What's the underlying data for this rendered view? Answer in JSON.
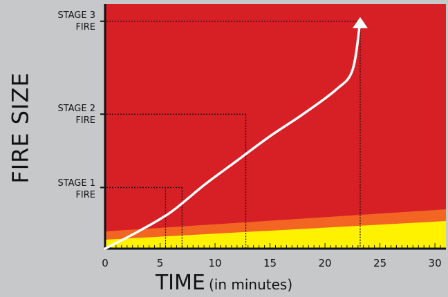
{
  "chart_data": {
    "type": "area",
    "xlabel": "TIME",
    "xlabel_suffix": "(in minutes)",
    "ylabel": "FIRE SIZE",
    "xlim": [
      0,
      31
    ],
    "xticks": [
      0,
      5,
      10,
      15,
      20,
      25,
      30
    ],
    "colors": {
      "red": "#d71f26",
      "orange": "#f26522",
      "yellow": "#fff200",
      "curve": "#ffffff",
      "background": "#c7c8ca"
    },
    "stages": [
      {
        "line1": "STAGE 1",
        "line2": "FIRE",
        "level": 0.25,
        "times": [
          5.5,
          7
        ]
      },
      {
        "line1": "STAGE 2",
        "line2": "FIRE",
        "level": 0.55,
        "times": [
          12.8
        ]
      },
      {
        "line1": "STAGE 3",
        "line2": "FIRE",
        "level": 0.93,
        "times": [
          23.2
        ]
      }
    ],
    "curve": {
      "x": [
        0,
        3,
        6,
        9,
        12,
        15,
        18,
        21,
        22.5,
        23.2
      ],
      "y": [
        0.0,
        0.07,
        0.15,
        0.26,
        0.36,
        0.46,
        0.55,
        0.65,
        0.73,
        0.93
      ]
    }
  }
}
